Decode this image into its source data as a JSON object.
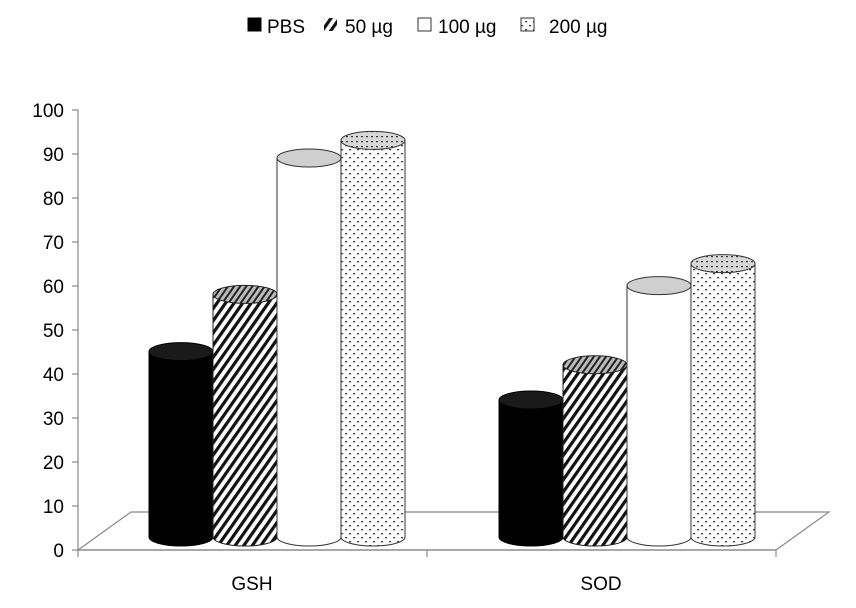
{
  "chart_data": {
    "type": "bar",
    "title": "",
    "xlabel": "",
    "ylabel": "",
    "categories": [
      "GSH",
      "SOD"
    ],
    "series": [
      {
        "name": "PBS",
        "values": [
          46,
          35
        ],
        "pattern": "solid-black"
      },
      {
        "name": "50 µg",
        "values": [
          59,
          43
        ],
        "pattern": "diagonal-hatch"
      },
      {
        "name": "100 µg",
        "values": [
          90,
          61
        ],
        "pattern": "white"
      },
      {
        "name": "200 µg",
        "values": [
          94,
          66
        ],
        "pattern": "dotted"
      }
    ],
    "ylim": [
      0,
      100
    ],
    "yticks": [
      "0",
      "10",
      "20",
      "30",
      "40",
      "50",
      "60",
      "70",
      "80",
      "90",
      "100"
    ],
    "legend_position": "top-center",
    "grid": false,
    "style": "3d-cylinder"
  }
}
